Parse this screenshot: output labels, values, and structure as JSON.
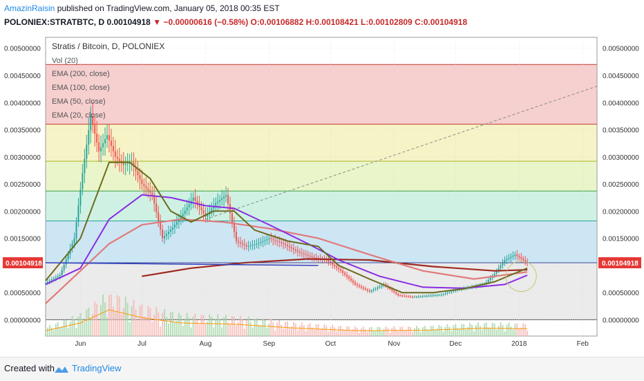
{
  "header": {
    "author": "AmazinRaisin",
    "published": "published on TradingView.com, January 05, 2018 00:35 EST",
    "symbol": "POLONIEX:STRATBTC, D",
    "last": "0.00104918",
    "change": "−0.00000616 (−0.58%)",
    "ohlc": "O:0.00106882 H:0.00108421 L:0.00102809 C:0.00104918"
  },
  "legend": {
    "title": "Stratis / Bitcoin, D, POLONIEX",
    "vol": "Vol (20)",
    "ema200": "EMA (200, close)",
    "ema100": "EMA (100, close)",
    "ema50": "EMA (50, close)",
    "ema20": "EMA (20, close)"
  },
  "price_tag": "0.00104918",
  "footer": {
    "created": "Created with",
    "brand": "TradingView"
  },
  "colors": {
    "ema200": "#a0281e",
    "ema100": "#e07a7a",
    "ema50": "#8a2be2",
    "ema20": "#6b6b1e",
    "up": "#26a69a",
    "down": "#ef5350",
    "price_tag_bg": "#e53935",
    "fib_line": "#2e3fbf"
  },
  "chart_data": {
    "type": "line",
    "title": "Stratis / Bitcoin, D, POLONIEX",
    "x_ticks": [
      "Jun",
      "Jul",
      "Aug",
      "Sep",
      "Oct",
      "Nov",
      "Dec",
      "2018",
      "Feb"
    ],
    "y_ticks": [
      "0.00500000",
      "0.00450000",
      "0.00400000",
      "0.00350000",
      "0.00300000",
      "0.00250000",
      "0.00200000",
      "0.00150000",
      "0.00100000",
      "0.00050000",
      "0.00000000"
    ],
    "ylim": [
      -0.0003,
      0.0052
    ],
    "last_price": 0.00104918,
    "fib_levels": [
      0.0047,
      0.0036,
      0.00292,
      0.00237,
      0.00182,
      0.00105
    ],
    "series": [
      {
        "name": "close",
        "dates": [
          "2017-05-15",
          "2017-05-22",
          "2017-05-29",
          "2017-06-02",
          "2017-06-06",
          "2017-06-10",
          "2017-06-14",
          "2017-06-18",
          "2017-06-22",
          "2017-06-26",
          "2017-07-01",
          "2017-07-06",
          "2017-07-11",
          "2017-07-16",
          "2017-07-21",
          "2017-07-26",
          "2017-08-01",
          "2017-08-06",
          "2017-08-11",
          "2017-08-16",
          "2017-08-21",
          "2017-08-26",
          "2017-09-01",
          "2017-09-08",
          "2017-09-15",
          "2017-09-22",
          "2017-09-29",
          "2017-10-06",
          "2017-10-13",
          "2017-10-20",
          "2017-10-27",
          "2017-11-03",
          "2017-11-10",
          "2017-11-17",
          "2017-11-24",
          "2017-12-01",
          "2017-12-08",
          "2017-12-15",
          "2017-12-20",
          "2017-12-25",
          "2017-12-30",
          "2018-01-05"
        ],
        "values": [
          0.00068,
          0.00082,
          0.0015,
          0.0027,
          0.00375,
          0.0031,
          0.0034,
          0.003,
          0.00285,
          0.0029,
          0.0025,
          0.0023,
          0.0015,
          0.0017,
          0.00195,
          0.00225,
          0.0019,
          0.00215,
          0.0023,
          0.00145,
          0.00135,
          0.0014,
          0.0015,
          0.0014,
          0.00125,
          0.00115,
          0.0011,
          0.0009,
          0.00065,
          0.00052,
          0.00065,
          0.00045,
          0.00042,
          0.00044,
          0.00046,
          0.00055,
          0.0006,
          0.00065,
          0.00085,
          0.0011,
          0.0012,
          0.00104918
        ]
      },
      {
        "name": "EMA (20, close)",
        "dates": [
          "2017-05-15",
          "2017-06-01",
          "2017-06-15",
          "2017-06-25",
          "2017-07-05",
          "2017-07-15",
          "2017-07-25",
          "2017-08-05",
          "2017-08-15",
          "2017-08-25",
          "2017-09-10",
          "2017-09-25",
          "2017-10-05",
          "2017-10-20",
          "2017-11-05",
          "2017-11-20",
          "2017-12-05",
          "2017-12-20",
          "2018-01-05"
        ],
        "values": [
          0.00072,
          0.0015,
          0.0029,
          0.0029,
          0.0026,
          0.002,
          0.0018,
          0.002,
          0.002,
          0.00165,
          0.00145,
          0.00135,
          0.001,
          0.00075,
          0.0005,
          0.0005,
          0.00057,
          0.0007,
          0.00095
        ]
      },
      {
        "name": "EMA (50, close)",
        "dates": [
          "2017-05-15",
          "2017-06-01",
          "2017-06-15",
          "2017-07-01",
          "2017-07-15",
          "2017-08-01",
          "2017-08-15",
          "2017-09-01",
          "2017-09-20",
          "2017-10-05",
          "2017-10-25",
          "2017-11-15",
          "2017-12-05",
          "2017-12-25",
          "2018-01-05"
        ],
        "values": [
          0.00065,
          0.00095,
          0.00185,
          0.0023,
          0.00225,
          0.0021,
          0.00205,
          0.00175,
          0.0014,
          0.0011,
          0.0008,
          0.0006,
          0.00058,
          0.00065,
          0.00082
        ]
      },
      {
        "name": "EMA (100, close)",
        "dates": [
          "2017-05-15",
          "2017-06-01",
          "2017-06-15",
          "2017-07-01",
          "2017-07-20",
          "2017-08-10",
          "2017-09-01",
          "2017-09-25",
          "2017-10-20",
          "2017-11-15",
          "2017-12-10",
          "2018-01-05"
        ],
        "values": [
          0.0003,
          0.0009,
          0.0014,
          0.00175,
          0.00185,
          0.0018,
          0.00168,
          0.0015,
          0.0012,
          0.0009,
          0.00075,
          0.00088
        ]
      },
      {
        "name": "EMA (200, close)",
        "dates": [
          "2017-07-01",
          "2017-07-25",
          "2017-08-20",
          "2017-09-20",
          "2017-10-20",
          "2017-11-20",
          "2017-12-20",
          "2018-01-05"
        ],
        "values": [
          0.0008,
          0.00095,
          0.00105,
          0.00112,
          0.0011,
          0.00098,
          0.0009,
          0.00092
        ]
      },
      {
        "name": "Vol (20)",
        "dates": [
          "2017-05-15",
          "2017-06-01",
          "2017-06-15",
          "2017-07-01",
          "2017-07-20",
          "2017-08-15",
          "2017-09-15",
          "2017-10-15",
          "2017-11-15",
          "2017-12-15",
          "2018-01-05"
        ],
        "values": [
          0.2,
          0.5,
          1.0,
          0.7,
          0.5,
          0.45,
          0.3,
          0.2,
          0.22,
          0.3,
          0.28
        ]
      }
    ]
  }
}
